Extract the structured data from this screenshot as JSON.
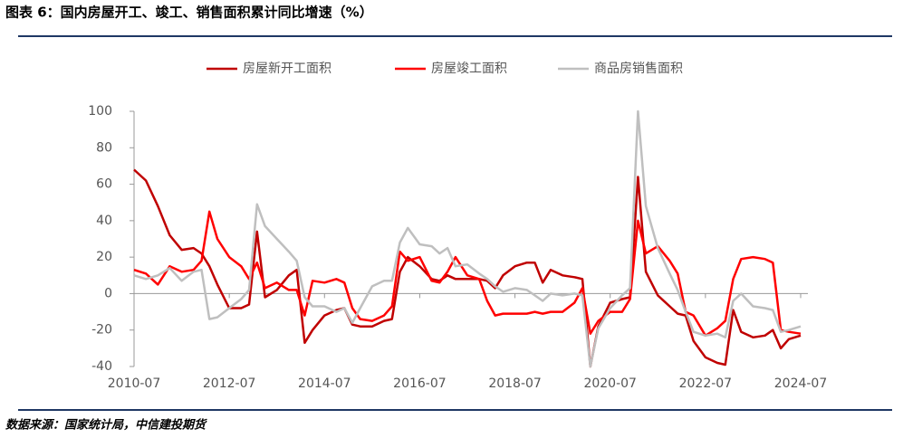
{
  "title": "图表 6：国内房屋开工、竣工、销售面积累计同比增速（%）",
  "source": "数据来源：国家统计局，中信建投期货",
  "chart_data": {
    "type": "line",
    "x": [
      "2010-07",
      "2010-10",
      "2011-01",
      "2011-04",
      "2011-07",
      "2011-10",
      "2011-12",
      "2012-02",
      "2012-04",
      "2012-07",
      "2012-10",
      "2012-12",
      "2013-02",
      "2013-04",
      "2013-07",
      "2013-10",
      "2013-12",
      "2014-02",
      "2014-04",
      "2014-07",
      "2014-10",
      "2014-12",
      "2015-02",
      "2015-04",
      "2015-07",
      "2015-10",
      "2015-12",
      "2016-02",
      "2016-04",
      "2016-07",
      "2016-10",
      "2016-12",
      "2017-02",
      "2017-04",
      "2017-07",
      "2017-10",
      "2017-12",
      "2018-02",
      "2018-04",
      "2018-07",
      "2018-10",
      "2018-12",
      "2019-02",
      "2019-04",
      "2019-07",
      "2019-10",
      "2019-12",
      "2020-02",
      "2020-04",
      "2020-07",
      "2020-10",
      "2020-12",
      "2021-02",
      "2021-04",
      "2021-07",
      "2021-10",
      "2021-12",
      "2022-02",
      "2022-04",
      "2022-07",
      "2022-10",
      "2022-12",
      "2023-02",
      "2023-04",
      "2023-07",
      "2023-10",
      "2023-12",
      "2024-02",
      "2024-04",
      "2024-07"
    ],
    "series": [
      {
        "name": "房屋新开工面积",
        "color": "#c00000",
        "values": [
          68,
          62,
          48,
          32,
          24,
          25,
          22,
          15,
          5,
          -8,
          -8,
          -6,
          34,
          -2,
          2,
          10,
          13,
          -27,
          -20,
          -12,
          -9,
          -8,
          -17,
          -18,
          -18,
          -15,
          -14,
          12,
          20,
          15,
          8,
          7,
          10,
          8,
          8,
          8,
          7,
          3,
          10,
          15,
          17,
          17,
          6,
          13,
          10,
          9,
          8,
          -40,
          -18,
          -5,
          -3,
          -2,
          64,
          12,
          -1,
          -7,
          -11,
          -12,
          -26,
          -35,
          -38,
          -39,
          -9,
          -21,
          -24,
          -23,
          -20,
          -30,
          -25,
          -23
        ]
      },
      {
        "name": "房屋竣工面积",
        "color": "#ff0000",
        "values": [
          13,
          11,
          5,
          15,
          12,
          13,
          18,
          45,
          30,
          20,
          15,
          8,
          17,
          3,
          6,
          2,
          2,
          -12,
          7,
          6,
          8,
          6,
          -8,
          -14,
          -15,
          -12,
          -7,
          23,
          18,
          20,
          7,
          6,
          12,
          20,
          10,
          8,
          -4,
          -12,
          -11,
          -11,
          -11,
          -10,
          -11,
          -10,
          -10,
          -5,
          3,
          -22,
          -15,
          -10,
          -10,
          -3,
          40,
          22,
          26,
          18,
          11,
          -10,
          -12,
          -23,
          -19,
          -15,
          8,
          19,
          20,
          19,
          17,
          -20,
          -21,
          -22
        ]
      },
      {
        "name": "商品房销售面积",
        "color": "#bfbfbf",
        "values": [
          10,
          8,
          10,
          14,
          7,
          12,
          13,
          -14,
          -13,
          -8,
          -3,
          2,
          49,
          37,
          30,
          23,
          18,
          -2,
          -7,
          -7,
          -10,
          -8,
          -16,
          -8,
          4,
          7,
          7,
          28,
          36,
          27,
          26,
          22,
          25,
          15,
          16,
          11,
          8,
          4,
          1,
          3,
          2,
          -1,
          -4,
          0,
          -1,
          0,
          -1,
          -40,
          -19,
          -8,
          -1,
          3,
          100,
          48,
          25,
          11,
          2,
          -10,
          -21,
          -23,
          -22,
          -24,
          -4,
          0,
          -7,
          -8,
          -9,
          -21,
          -20,
          -18
        ]
      }
    ],
    "xticks": [
      "2010-07",
      "2012-07",
      "2014-07",
      "2016-07",
      "2018-07",
      "2020-07",
      "2022-07",
      "2024-07"
    ],
    "ylim": [
      -40,
      100
    ],
    "yticks": [
      -40,
      -20,
      0,
      20,
      40,
      60,
      80,
      100
    ]
  }
}
